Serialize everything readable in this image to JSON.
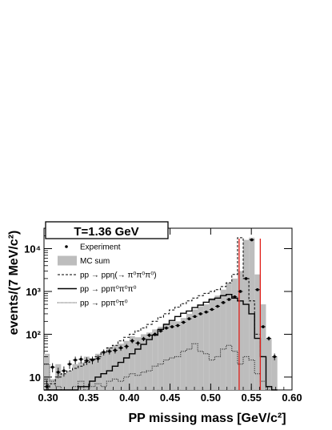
{
  "chart_data": {
    "type": "line",
    "title_box": "T=1.36 GeV",
    "xlabel": "PP missing mass [GeV/c²]",
    "ylabel": "events/(7 MeV/c²)",
    "xlim": [
      0.295,
      0.6
    ],
    "ylim": [
      5,
      30000
    ],
    "yscale": "log",
    "x_ticks": [
      0.3,
      0.35,
      0.4,
      0.45,
      0.5,
      0.55,
      0.6
    ],
    "x_tick_labels": [
      "0.30",
      "0.35",
      "0.40",
      "0.45",
      "0.50",
      "0.55",
      "0.60"
    ],
    "y_ticks": [
      10,
      100,
      1000,
      10000
    ],
    "y_tick_labels": [
      "10",
      "10²",
      "10³",
      "10⁴"
    ],
    "legend": [
      {
        "label": "Experiment",
        "style": "dot"
      },
      {
        "label": "MC sum",
        "style": "grey-fill"
      },
      {
        "label": "pp → ppη(→ π⁰π⁰π⁰)",
        "style": "dashed"
      },
      {
        "label": "pp → ppπ⁰π⁰π⁰",
        "style": "solid"
      },
      {
        "label": "pp → ppπ⁰π⁰",
        "style": "dotted"
      }
    ],
    "cut_lines": {
      "x": [
        0.535,
        0.561
      ],
      "color": "#e0201a"
    },
    "bin_edges_start": 0.295,
    "bin_width": 0.007,
    "experiment": [
      6,
      17,
      13,
      14,
      20,
      25,
      26,
      24,
      25,
      27,
      38,
      40,
      42,
      48,
      52,
      70,
      62,
      78,
      95,
      100,
      120,
      140,
      150,
      160,
      190,
      230,
      260,
      300,
      330,
      380,
      450,
      550,
      650,
      750,
      1000,
      2000,
      16000,
      1100,
      150,
      80,
      30
    ],
    "mc_sum": [
      35,
      9,
      20,
      12,
      14,
      20,
      22,
      30,
      28,
      35,
      40,
      50,
      55,
      60,
      70,
      90,
      85,
      100,
      110,
      130,
      150,
      180,
      200,
      200,
      240,
      300,
      380,
      450,
      500,
      700,
      800,
      1100,
      1600,
      2000,
      3000,
      16000,
      18000,
      2500,
      500,
      80,
      30
    ],
    "eta_3pi0": [
      5,
      7,
      10,
      12,
      14,
      16,
      18,
      22,
      26,
      30,
      38,
      48,
      55,
      70,
      85,
      100,
      120,
      140,
      170,
      200,
      250,
      300,
      370,
      430,
      520,
      600,
      700,
      800,
      900,
      1000,
      1100,
      1300,
      1600,
      2500,
      18000,
      2000,
      600,
      100,
      30,
      6,
      4
    ],
    "pp3pi0": [
      2,
      2,
      3,
      4,
      4,
      5,
      6,
      6,
      8,
      10,
      12,
      14,
      18,
      22,
      28,
      35,
      45,
      58,
      75,
      95,
      130,
      170,
      210,
      260,
      310,
      350,
      420,
      480,
      560,
      650,
      700,
      800,
      850,
      700,
      600,
      500,
      300,
      80,
      30,
      6,
      3
    ],
    "pp2pi0": [
      20,
      8,
      6,
      5,
      5,
      6,
      8,
      5,
      6,
      7,
      6,
      8,
      9,
      8,
      10,
      12,
      11,
      13,
      14,
      18,
      20,
      25,
      28,
      30,
      40,
      45,
      60,
      40,
      35,
      25,
      30,
      45,
      55,
      40,
      20,
      30,
      25,
      12,
      8,
      4,
      2
    ]
  }
}
